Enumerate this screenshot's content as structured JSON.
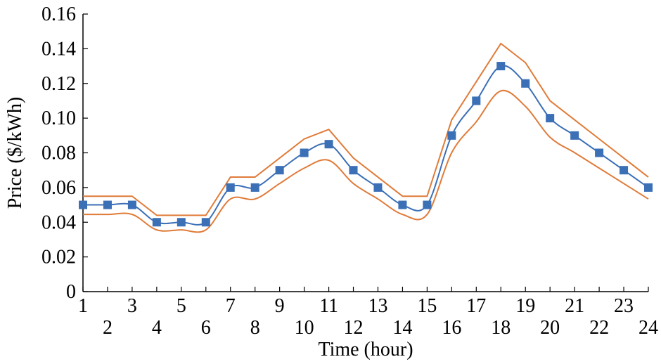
{
  "chart_data": {
    "type": "line",
    "xlabel": "Time (hour)",
    "ylabel": "Price ($/kWh)",
    "xlim": [
      1,
      24
    ],
    "ylim": [
      0,
      0.16
    ],
    "x_ticks_top_row": [
      "1",
      "3",
      "5",
      "7",
      "9",
      "11",
      "13",
      "15",
      "17",
      "19",
      "21",
      "23"
    ],
    "x_ticks_bottom_row": [
      "2",
      "4",
      "6",
      "8",
      "10",
      "12",
      "14",
      "16",
      "18",
      "20",
      "22",
      "24"
    ],
    "y_ticks": [
      "0",
      "0.02",
      "0.04",
      "0.06",
      "0.08",
      "0.10",
      "0.12",
      "0.14",
      "0.16"
    ],
    "grid": false,
    "legend": "none",
    "x": [
      1,
      2,
      3,
      4,
      5,
      6,
      7,
      8,
      9,
      10,
      11,
      12,
      13,
      14,
      15,
      16,
      17,
      18,
      19,
      20,
      21,
      22,
      23,
      24
    ],
    "series": [
      {
        "style": "smooth-line-with-square-markers",
        "color": "#3b6fb6",
        "values": [
          0.05,
          0.05,
          0.05,
          0.04,
          0.04,
          0.04,
          0.06,
          0.06,
          0.07,
          0.08,
          0.085,
          0.07,
          0.06,
          0.05,
          0.05,
          0.09,
          0.11,
          0.13,
          0.12,
          0.1,
          0.09,
          0.08,
          0.07,
          0.06
        ]
      },
      {
        "style": "line",
        "color": "#e07b39",
        "values": [
          0.055,
          0.055,
          0.055,
          0.044,
          0.044,
          0.044,
          0.066,
          0.066,
          0.077,
          0.088,
          0.0935,
          0.077,
          0.066,
          0.055,
          0.055,
          0.099,
          0.121,
          0.143,
          0.132,
          0.11,
          0.099,
          0.088,
          0.077,
          0.066
        ]
      },
      {
        "style": "smooth-line",
        "color": "#e07b39",
        "values": [
          0.0445,
          0.0445,
          0.0445,
          0.0356,
          0.0356,
          0.0356,
          0.0534,
          0.0534,
          0.0623,
          0.0712,
          0.0757,
          0.0623,
          0.0534,
          0.0445,
          0.0445,
          0.0801,
          0.0979,
          0.1157,
          0.1068,
          0.089,
          0.0801,
          0.0712,
          0.0623,
          0.0534
        ]
      }
    ]
  }
}
